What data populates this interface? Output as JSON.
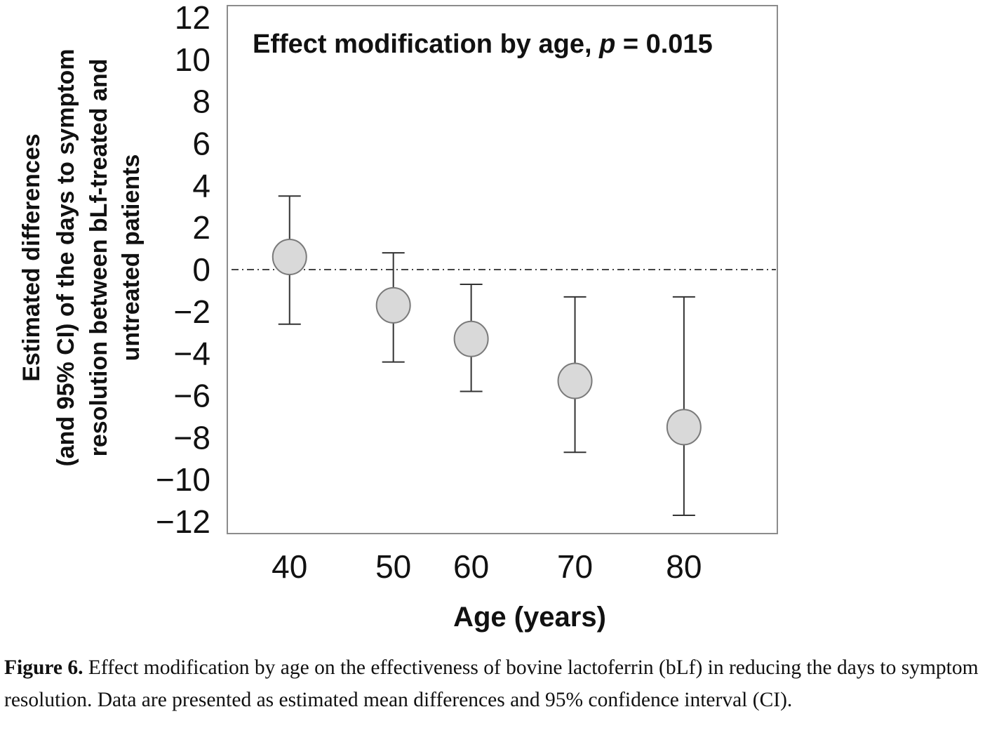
{
  "chart_data": {
    "type": "scatter",
    "title_prefix": "Effect modification  by age, ",
    "title_p": "p",
    "title_suffix": " = 0.015",
    "xlabel": "Age (years)",
    "ylabel_lines": [
      "Estimated differences",
      "(and 95% CI) of the days to symptom",
      "resolution between bLf-treated and",
      "untreated patients"
    ],
    "ylim": [
      -12,
      12
    ],
    "y_ticks": [
      12,
      10,
      8,
      6,
      4,
      2,
      0,
      -2,
      -4,
      -6,
      -8,
      -10,
      -12
    ],
    "y_tick_labels": [
      "12",
      "10",
      "8",
      "6",
      "4",
      "2",
      "0",
      "−2",
      "−4",
      "−6",
      "−8",
      "−10",
      "−12"
    ],
    "xlim": [
      34,
      87
    ],
    "x_tick_labels": [
      "40",
      "50",
      "60",
      "70",
      "80"
    ],
    "reference_line": 0,
    "points": [
      {
        "x": 40,
        "y": 0.6,
        "lower": -2.6,
        "upper": 3.5
      },
      {
        "x": 50,
        "y": -1.7,
        "lower": -4.4,
        "upper": 0.8
      },
      {
        "x": 57.5,
        "y": -3.3,
        "lower": -5.8,
        "upper": -0.7
      },
      {
        "x": 67.5,
        "y": -5.3,
        "lower": -8.7,
        "upper": -1.3
      },
      {
        "x": 78,
        "y": -7.5,
        "lower": -11.7,
        "upper": -1.3
      }
    ],
    "marker_fill": "#d9d9d9",
    "marker_stroke": "#7a7a7a",
    "line_color": "#333333"
  },
  "caption": {
    "label": "Figure 6.",
    "text": " Effect modification by age on the effectiveness of bovine lactoferrin (bLf) in reducing the days to symptom resolution. Data are presented as estimated mean differences and 95% confidence interval (CI)."
  }
}
